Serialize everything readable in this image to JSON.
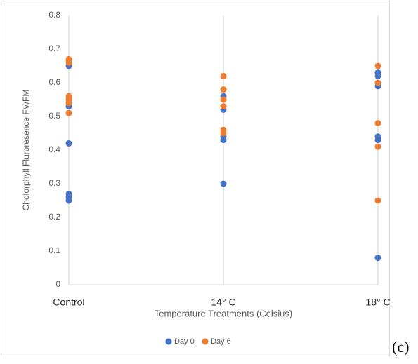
{
  "chart_data": {
    "type": "scatter",
    "x_label": "Temperature Treatments (Celsius)",
    "y_label": "Cholorphyll Fluroresence FV/FM",
    "categories": [
      "Control",
      "14° C",
      "18° C"
    ],
    "series": [
      {
        "name": "Day 0",
        "color": "#4472c4",
        "values": [
          [
            0.65,
            0.53,
            0.42,
            0.27,
            0.26,
            0.25
          ],
          [
            0.56,
            0.55,
            0.52,
            0.44,
            0.43,
            0.3
          ],
          [
            0.63,
            0.62,
            0.59,
            0.44,
            0.43,
            0.08
          ]
        ]
      },
      {
        "name": "Day 6",
        "color": "#ed7d31",
        "values": [
          [
            0.67,
            0.66,
            0.56,
            0.55,
            0.54,
            0.51
          ],
          [
            0.62,
            0.58,
            0.55,
            0.53,
            0.46,
            0.45
          ],
          [
            0.65,
            0.6,
            0.48,
            0.41,
            0.25
          ]
        ]
      }
    ],
    "ylim": [
      0,
      0.8
    ],
    "yticks": [
      0,
      0.1,
      0.2,
      0.3,
      0.4,
      0.5,
      0.6,
      0.7,
      0.8
    ],
    "grid": true,
    "legend": "bottom"
  },
  "panel_label": "(c)"
}
